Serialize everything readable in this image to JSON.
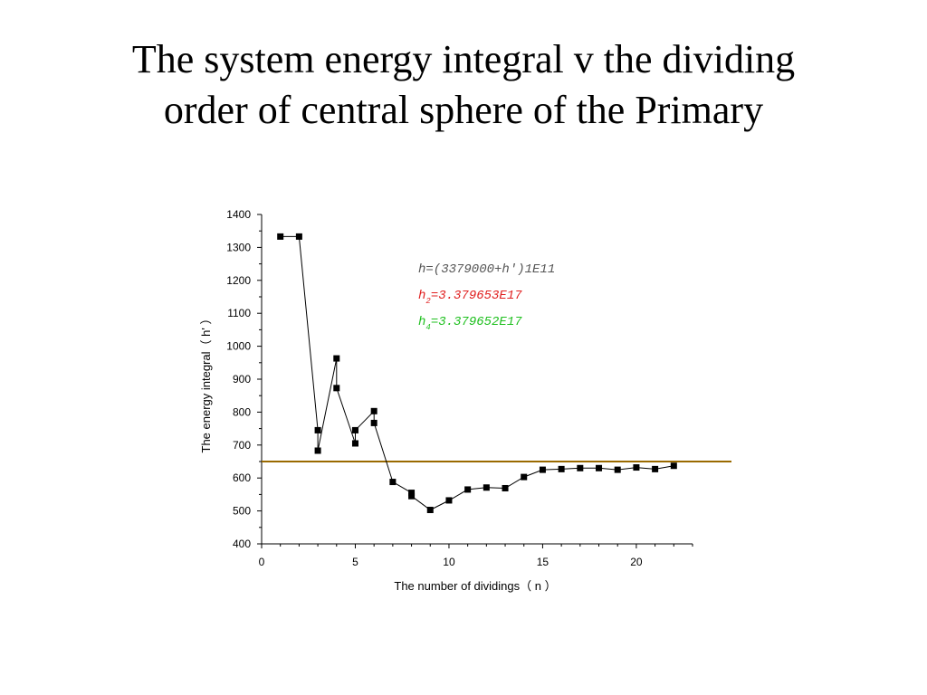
{
  "slide": {
    "title_line1": "The system energy integral v the dividing",
    "title_line2": "order of central sphere of the Primary"
  },
  "chart_data": {
    "type": "line",
    "xlabel": "The number of dividings（ n ）",
    "ylabel": "The energy integral（ h' ）",
    "xlim": [
      0,
      23
    ],
    "ylim": [
      400,
      1400
    ],
    "x_ticks": [
      "0",
      "5",
      "10",
      "15",
      "20"
    ],
    "y_ticks": [
      "400",
      "500",
      "600",
      "700",
      "800",
      "900",
      "1000",
      "1100",
      "1200",
      "1300",
      "1400"
    ],
    "grid": false,
    "series": [
      {
        "marker": "square",
        "color": "#000000",
        "points": [
          [
            1,
            1333
          ],
          [
            2,
            1333
          ],
          [
            3,
            745
          ],
          [
            3,
            683
          ],
          [
            4,
            963
          ],
          [
            4,
            873
          ],
          [
            5,
            705
          ],
          [
            5,
            745
          ],
          [
            6,
            803
          ],
          [
            6,
            767
          ],
          [
            7,
            588
          ],
          [
            8,
            555
          ],
          [
            8,
            545
          ],
          [
            9,
            503
          ],
          [
            10,
            532
          ],
          [
            11,
            565
          ],
          [
            12,
            571
          ],
          [
            13,
            569
          ],
          [
            14,
            603
          ],
          [
            15,
            625
          ],
          [
            16,
            627
          ],
          [
            17,
            630
          ],
          [
            18,
            630
          ],
          [
            19,
            625
          ],
          [
            20,
            632
          ],
          [
            21,
            627
          ],
          [
            22,
            637
          ]
        ]
      }
    ],
    "reference_line": {
      "y": 650,
      "color": "#9a6a00"
    },
    "annotations": [
      {
        "text": "h=(3379000+h')1E11",
        "color": "#555555"
      },
      {
        "base": "h",
        "sub": "2",
        "rest": "=3.379653E17",
        "color": "#e02020"
      },
      {
        "base": "h",
        "sub": "4",
        "rest": "=3.379652E17",
        "color": "#20c020"
      }
    ]
  }
}
